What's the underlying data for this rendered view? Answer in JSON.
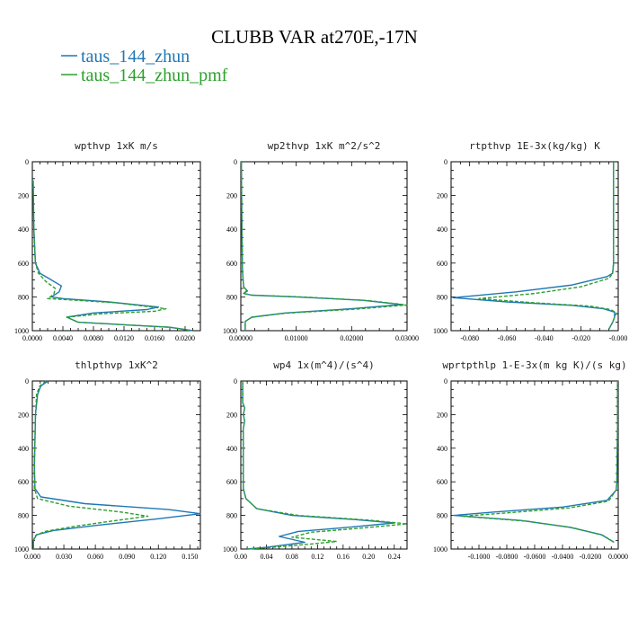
{
  "figure": {
    "title": "CLUBB VAR at270E,-17N",
    "legend": [
      {
        "label": "taus_144_zhun",
        "color": "#1f77b4",
        "dash": "solid"
      },
      {
        "label": "taus_144_zhun_pmf",
        "color": "#2ca02c",
        "dash": "dashed"
      }
    ]
  },
  "chart_data": [
    {
      "type": "line",
      "title": "wpthvp  1xK m/s",
      "xlim": [
        0,
        0.022
      ],
      "ylim": [
        0,
        1000
      ],
      "y_inverted": true,
      "xticks": [
        0.0,
        0.004,
        0.008,
        0.012,
        0.016,
        0.02
      ],
      "xtick_labels": [
        "0.0000",
        "0.0040",
        "0.0080",
        "0.0120",
        "0.0160",
        "0.0200"
      ],
      "yticks": [
        0,
        200,
        400,
        600,
        800,
        1000
      ],
      "series": [
        {
          "color": "#1f77b4",
          "dash": "solid",
          "x": [
            0.0001,
            0.0002,
            0.0004,
            0.001,
            0.0025,
            0.0038,
            0.0035,
            0.0025,
            0.004,
            0.01,
            0.0165,
            0.015,
            0.008,
            0.0045,
            0.006,
            0.012,
            0.018,
            0.021
          ],
          "y": [
            110,
            400,
            600,
            660,
            700,
            735,
            770,
            800,
            810,
            830,
            860,
            875,
            895,
            920,
            950,
            965,
            980,
            1000
          ]
        },
        {
          "color": "#2ca02c",
          "dash": "dashed",
          "x": [
            0.0001,
            0.0002,
            0.0004,
            0.0008,
            0.0018,
            0.003,
            0.0028,
            0.002,
            0.004,
            0.011,
            0.0175,
            0.016,
            0.009,
            0.0045,
            0.006,
            0.012,
            0.018,
            0.021
          ],
          "y": [
            110,
            400,
            600,
            660,
            710,
            750,
            785,
            810,
            815,
            835,
            870,
            885,
            900,
            920,
            950,
            965,
            980,
            1000
          ]
        }
      ]
    },
    {
      "type": "line",
      "title": "wp2thvp  1xK m^2/s^2",
      "xlim": [
        0,
        0.03
      ],
      "ylim": [
        0,
        1000
      ],
      "y_inverted": true,
      "xticks": [
        0.0,
        0.01,
        0.02,
        0.03
      ],
      "xtick_labels": [
        "0.00000",
        "0.01000",
        "0.02000",
        "0.03000"
      ],
      "yticks": [
        0,
        200,
        400,
        600,
        800,
        1000
      ],
      "series": [
        {
          "color": "#1f77b4",
          "dash": "solid",
          "x": [
            0.0001,
            0.0002,
            0.0003,
            0.0005,
            0.0012,
            0.0005,
            0.002,
            0.01,
            0.022,
            0.029,
            0.02,
            0.008,
            0.002,
            0.0008,
            0.0008
          ],
          "y": [
            0,
            400,
            650,
            740,
            765,
            780,
            790,
            800,
            820,
            845,
            870,
            895,
            920,
            945,
            1000
          ]
        },
        {
          "color": "#2ca02c",
          "dash": "dashed",
          "x": [
            0.0001,
            0.0002,
            0.0003,
            0.0005,
            0.001,
            0.0005,
            0.002,
            0.011,
            0.023,
            0.03,
            0.021,
            0.008,
            0.002,
            0.0008,
            0.0008
          ],
          "y": [
            0,
            400,
            650,
            740,
            765,
            780,
            790,
            800,
            822,
            848,
            872,
            897,
            920,
            945,
            1000
          ]
        }
      ]
    },
    {
      "type": "line",
      "title": "rtpthvp  1E-3x(kg/kg) K",
      "xlim": [
        -0.09,
        0.0
      ],
      "ylim": [
        0,
        1000
      ],
      "y_inverted": true,
      "xticks": [
        -0.08,
        -0.06,
        -0.04,
        -0.02,
        0.0
      ],
      "xtick_labels": [
        "-0.080",
        "-0.060",
        "-0.040",
        "-0.020",
        "-0.000"
      ],
      "yticks": [
        0,
        200,
        400,
        600,
        800,
        1000
      ],
      "series": [
        {
          "color": "#1f77b4",
          "dash": "solid",
          "x": [
            -0.0025,
            -0.0025,
            -0.0025,
            -0.003,
            -0.006,
            -0.025,
            -0.055,
            -0.089,
            -0.06,
            -0.025,
            -0.008,
            -0.002,
            -0.002,
            -0.003,
            -0.005
          ],
          "y": [
            0,
            300,
            600,
            660,
            680,
            730,
            770,
            805,
            830,
            850,
            870,
            890,
            920,
            950,
            990
          ]
        },
        {
          "color": "#2ca02c",
          "dash": "dashed",
          "x": [
            -0.0025,
            -0.0025,
            -0.0025,
            -0.003,
            -0.005,
            -0.02,
            -0.045,
            -0.075,
            -0.045,
            -0.015,
            -0.004,
            -0.001,
            -0.002,
            -0.003,
            -0.005
          ],
          "y": [
            0,
            300,
            600,
            660,
            690,
            740,
            780,
            810,
            835,
            855,
            875,
            895,
            920,
            950,
            990
          ]
        }
      ]
    },
    {
      "type": "line",
      "title": "thlpthvp  1xK^2",
      "xlim": [
        0,
        0.16
      ],
      "ylim": [
        0,
        1000
      ],
      "y_inverted": true,
      "xticks": [
        0.0,
        0.03,
        0.06,
        0.09,
        0.12,
        0.15
      ],
      "xtick_labels": [
        "0.000",
        "0.030",
        "0.060",
        "0.090",
        "0.120",
        "0.150"
      ],
      "yticks": [
        0,
        200,
        400,
        600,
        800,
        1000
      ],
      "series": [
        {
          "color": "#1f77b4",
          "dash": "solid",
          "x": [
            0.015,
            0.008,
            0.005,
            0.003,
            0.002,
            0.0025,
            0.008,
            0.05,
            0.13,
            0.16,
            0.12,
            0.06,
            0.02,
            0.004,
            0.001,
            0.001
          ],
          "y": [
            0,
            30,
            80,
            200,
            500,
            640,
            690,
            730,
            765,
            790,
            820,
            860,
            890,
            915,
            950,
            1000
          ]
        },
        {
          "color": "#2ca02c",
          "dash": "dashed",
          "x": [
            0.013,
            0.007,
            0.004,
            0.003,
            0.002,
            0.002,
            0.005,
            0.035,
            0.085,
            0.11,
            0.08,
            0.04,
            0.012,
            0.003,
            0.001,
            0.001
          ],
          "y": [
            0,
            30,
            80,
            200,
            500,
            640,
            700,
            745,
            780,
            805,
            830,
            865,
            895,
            920,
            950,
            1000
          ]
        }
      ]
    },
    {
      "type": "line",
      "title": "wp4  1x(m^4)/(s^4)",
      "xlim": [
        0,
        0.26
      ],
      "ylim": [
        0,
        1000
      ],
      "y_inverted": true,
      "xticks": [
        0.0,
        0.04,
        0.08,
        0.12,
        0.16,
        0.2,
        0.24
      ],
      "xtick_labels": [
        "0.00",
        "0.04",
        "0.08",
        "0.12",
        "0.16",
        "0.20",
        "0.24"
      ],
      "yticks": [
        0,
        200,
        400,
        600,
        800,
        1000
      ],
      "series": [
        {
          "color": "#1f77b4",
          "dash": "solid",
          "x": [
            0.003,
            0.003,
            0.006,
            0.004,
            0.006,
            0.004,
            0.004,
            0.008,
            0.025,
            0.08,
            0.18,
            0.24,
            0.17,
            0.09,
            0.06,
            0.1,
            0.07,
            0.04,
            0.01
          ],
          "y": [
            0,
            130,
            160,
            200,
            240,
            280,
            640,
            700,
            760,
            800,
            825,
            845,
            870,
            895,
            925,
            960,
            975,
            990,
            1000
          ]
        },
        {
          "color": "#2ca02c",
          "dash": "dashed",
          "x": [
            0.003,
            0.003,
            0.006,
            0.004,
            0.006,
            0.004,
            0.004,
            0.008,
            0.025,
            0.09,
            0.2,
            0.26,
            0.19,
            0.11,
            0.08,
            0.15,
            0.11,
            0.05,
            0.01
          ],
          "y": [
            0,
            130,
            160,
            200,
            240,
            280,
            640,
            700,
            760,
            800,
            828,
            850,
            875,
            900,
            930,
            955,
            970,
            990,
            1000
          ]
        }
      ]
    },
    {
      "type": "line",
      "title": "wprtpthlp  1-E-3x(m kg K)/(s kg)",
      "xlim": [
        -0.12,
        0.0
      ],
      "ylim": [
        0,
        1000
      ],
      "y_inverted": true,
      "xticks": [
        -0.1,
        -0.08,
        -0.06,
        -0.04,
        -0.02,
        0.0
      ],
      "xtick_labels": [
        "-0.1000",
        "-0.0800",
        "-0.0600",
        "-0.0400",
        "-0.0200",
        "0.0000"
      ],
      "yticks": [
        0,
        200,
        400,
        600,
        800,
        1000
      ],
      "series": [
        {
          "color": "#1f77b4",
          "dash": "solid",
          "x": [
            -0.0005,
            -0.0005,
            -0.001,
            -0.0015,
            -0.008,
            -0.04,
            -0.09,
            -0.118,
            -0.07,
            -0.035,
            -0.012,
            -0.003
          ],
          "y": [
            0,
            300,
            600,
            650,
            710,
            750,
            780,
            800,
            830,
            870,
            915,
            960
          ]
        },
        {
          "color": "#2ca02c",
          "dash": "dashed",
          "x": [
            -0.0005,
            -0.0005,
            -0.001,
            -0.0015,
            -0.007,
            -0.035,
            -0.08,
            -0.112,
            -0.065,
            -0.032,
            -0.011,
            -0.003
          ],
          "y": [
            0,
            300,
            600,
            650,
            715,
            755,
            785,
            805,
            835,
            875,
            918,
            960
          ]
        }
      ]
    }
  ]
}
